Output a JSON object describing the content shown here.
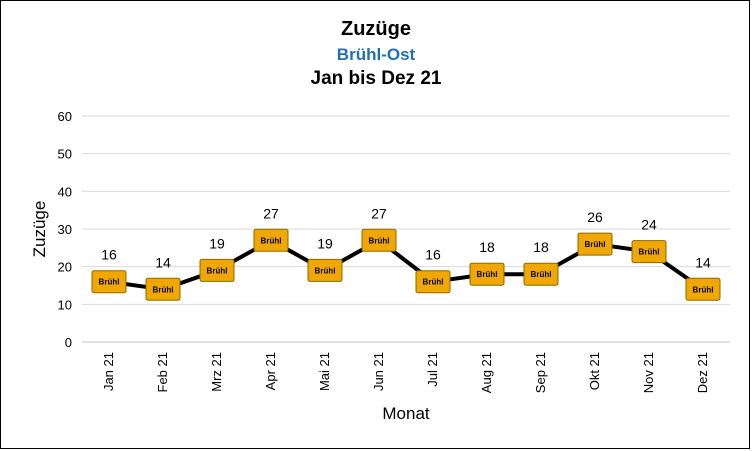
{
  "chart_data": {
    "type": "line",
    "title": "Zuzüge",
    "subtitle": "Brühl-Ost",
    "period": "Jan bis Dez 21",
    "xlabel": "Monat",
    "ylabel": "Zuzüge",
    "ylim": [
      0,
      60
    ],
    "yticks": [
      0,
      10,
      20,
      30,
      40,
      50,
      60
    ],
    "grid": true,
    "categories": [
      "Jan 21",
      "Feb 21",
      "Mrz 21",
      "Apr 21",
      "Mai 21",
      "Jun 21",
      "Jul 21",
      "Aug 21",
      "Sep 21",
      "Okt 21",
      "Nov 21",
      "Dez 21"
    ],
    "series": [
      {
        "marker_label": "Brühl",
        "values": [
          16,
          14,
          19,
          27,
          19,
          27,
          16,
          18,
          18,
          26,
          24,
          14
        ]
      }
    ],
    "colors": {
      "subtitle": "#1f6fb4",
      "line": "#000000",
      "marker": "#f0a800",
      "marker_border": "#8a6a00",
      "grid": "#d9d9d9"
    }
  }
}
